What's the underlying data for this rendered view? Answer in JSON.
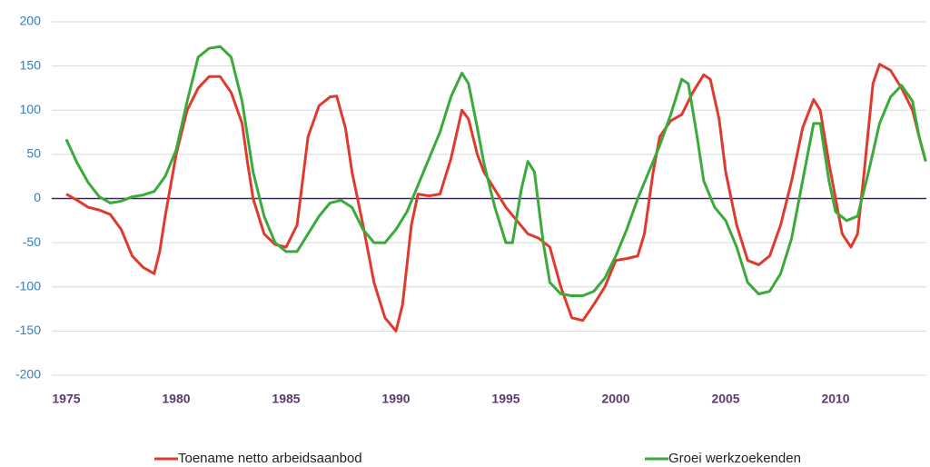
{
  "chart_data": {
    "type": "line",
    "xlim": [
      1974.34,
      2014.13
    ],
    "xticks": [
      1975,
      1980,
      1985,
      1990,
      1995,
      2000,
      2005,
      2010
    ],
    "ylim": [
      -200,
      200
    ],
    "yticks": [
      -200,
      -150,
      -100,
      -50,
      0,
      50,
      100,
      150,
      200
    ],
    "grid": true,
    "legend": "bottom",
    "series": [
      {
        "name": "Toename netto arbeidsaanbod",
        "color": "#e03a2f",
        "x": [
          1975,
          1975.5,
          1976,
          1976.5,
          1977,
          1977.5,
          1978,
          1978.5,
          1979,
          1979.25,
          1979.5,
          1980,
          1980.5,
          1981,
          1981.5,
          1982,
          1982.5,
          1983,
          1983.25,
          1983.5,
          1984,
          1984.5,
          1985,
          1985.5,
          1985.75,
          1986,
          1986.5,
          1987,
          1987.3,
          1987.7,
          1988,
          1988.5,
          1989,
          1989.5,
          1990,
          1990.3,
          1990.7,
          1991,
          1991.5,
          1992,
          1992.5,
          1993,
          1993.3,
          1993.7,
          1994,
          1994.5,
          1995,
          1995.5,
          1996,
          1996.5,
          1997,
          1997.5,
          1998,
          1998.5,
          1999,
          1999.5,
          2000,
          2000.5,
          2001,
          2001.3,
          2001.7,
          2002,
          2002.5,
          2003,
          2003.5,
          2004,
          2004.3,
          2004.7,
          2005,
          2005.5,
          2006,
          2006.5,
          2007,
          2007.5,
          2008,
          2008.5,
          2009,
          2009.3,
          2009.7,
          2010,
          2010.3,
          2010.7,
          2011,
          2011.3,
          2011.7,
          2012,
          2012.5,
          2013,
          2013.5,
          2013.8,
          2014.1
        ],
        "values": [
          5,
          -2,
          -10,
          -13,
          -18,
          -35,
          -65,
          -78,
          -85,
          -60,
          -20,
          50,
          100,
          125,
          138,
          138,
          120,
          85,
          40,
          0,
          -40,
          -52,
          -55,
          -30,
          20,
          70,
          105,
          115,
          116,
          80,
          30,
          -30,
          -95,
          -135,
          -150,
          -120,
          -30,
          5,
          3,
          5,
          45,
          100,
          90,
          50,
          30,
          10,
          -10,
          -25,
          -40,
          -45,
          -55,
          -100,
          -135,
          -138,
          -120,
          -100,
          -70,
          -68,
          -65,
          -40,
          30,
          70,
          88,
          95,
          120,
          140,
          135,
          90,
          30,
          -30,
          -70,
          -75,
          -65,
          -30,
          20,
          80,
          112,
          100,
          40,
          0,
          -40,
          -55,
          -40,
          30,
          130,
          152,
          145,
          125,
          100,
          70,
          42
        ]
      },
      {
        "name": "Groei werkzoekenden",
        "color": "#3aaa3a",
        "x": [
          1975,
          1975.5,
          1976,
          1976.5,
          1977,
          1977.5,
          1978,
          1978.5,
          1979,
          1979.5,
          1980,
          1980.5,
          1981,
          1981.5,
          1982,
          1982.5,
          1983,
          1983.5,
          1984,
          1984.5,
          1985,
          1985.5,
          1986,
          1986.5,
          1987,
          1987.5,
          1988,
          1988.5,
          1989,
          1989.5,
          1990,
          1990.5,
          1991,
          1991.5,
          1992,
          1992.5,
          1993,
          1993.3,
          1993.7,
          1994,
          1994.5,
          1995,
          1995.3,
          1995.7,
          1996,
          1996.3,
          1996.7,
          1997,
          1997.5,
          1998,
          1998.5,
          1999,
          1999.5,
          2000,
          2000.5,
          2001,
          2001.5,
          2002,
          2002.5,
          2003,
          2003.3,
          2003.7,
          2004,
          2004.5,
          2005,
          2005.5,
          2006,
          2006.5,
          2007,
          2007.5,
          2008,
          2008.5,
          2009,
          2009.3,
          2009.7,
          2010,
          2010.5,
          2011,
          2011.5,
          2012,
          2012.5,
          2013,
          2013.5,
          2013.8,
          2014.1
        ],
        "values": [
          67,
          40,
          18,
          2,
          -5,
          -3,
          2,
          4,
          8,
          25,
          55,
          110,
          160,
          170,
          172,
          160,
          110,
          30,
          -20,
          -50,
          -60,
          -60,
          -40,
          -20,
          -5,
          -2,
          -10,
          -35,
          -50,
          -50,
          -35,
          -15,
          15,
          45,
          75,
          115,
          142,
          130,
          80,
          40,
          -10,
          -50,
          -50,
          10,
          42,
          30,
          -50,
          -95,
          -108,
          -110,
          -110,
          -105,
          -90,
          -65,
          -35,
          0,
          30,
          60,
          95,
          135,
          130,
          70,
          20,
          -10,
          -25,
          -55,
          -95,
          -108,
          -105,
          -85,
          -45,
          20,
          85,
          85,
          20,
          -15,
          -25,
          -20,
          30,
          85,
          115,
          128,
          110,
          70,
          42
        ]
      }
    ]
  }
}
